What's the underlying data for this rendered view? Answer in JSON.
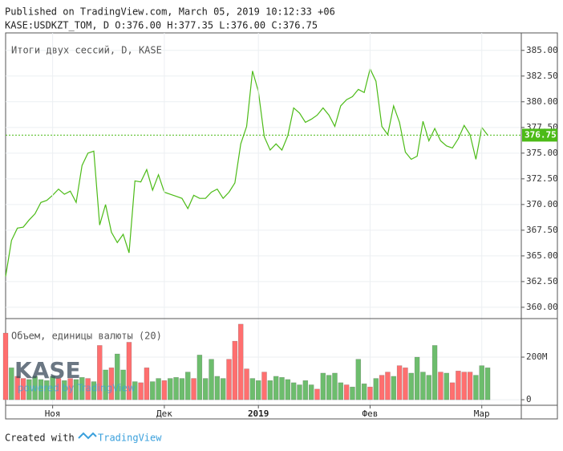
{
  "header": {
    "published": "Published on TradingView.com, March 05, 2019 10:12:33 +06",
    "symbol": "KASE:USDKZT_TOM, D O:376.00 H:377.35 L:376.00 C:376.75"
  },
  "watermark": {
    "logo": "KASE",
    "powered": "powered by TradingView"
  },
  "footer": {
    "created": "Created with",
    "brand": "TradingView"
  },
  "chart_data": [
    {
      "type": "line",
      "title": "Итоги двух сессий, D, KASE",
      "categories": [
        null,
        null,
        null,
        null,
        null,
        null,
        null,
        null,
        "Ноя",
        null,
        null,
        null,
        null,
        null,
        null,
        null,
        null,
        null,
        null,
        null,
        null,
        null,
        null,
        null,
        null,
        null,
        null,
        "Дек",
        null,
        null,
        null,
        null,
        null,
        null,
        null,
        null,
        null,
        null,
        null,
        null,
        null,
        null,
        null,
        "2019",
        null,
        null,
        null,
        null,
        null,
        null,
        null,
        null,
        null,
        null,
        null,
        null,
        null,
        null,
        null,
        null,
        null,
        null,
        "Фев",
        null,
        null,
        null,
        null,
        null,
        null,
        null,
        null,
        null,
        null,
        null,
        null,
        null,
        null,
        null,
        null,
        null,
        null,
        "Мар",
        null
      ],
      "series": [
        {
          "name": "USDKZT_TOM",
          "color": "#4cbb17",
          "values": [
            363.0,
            366.5,
            367.7,
            367.8,
            368.5,
            369.1,
            370.2,
            370.4,
            370.9,
            371.5,
            371.0,
            371.3,
            370.2,
            373.8,
            375.0,
            375.2,
            368.0,
            370.0,
            367.3,
            366.3,
            367.1,
            365.3,
            372.3,
            372.2,
            373.4,
            371.4,
            372.9,
            371.2,
            371.0,
            370.8,
            370.6,
            369.6,
            370.9,
            370.6,
            370.6,
            371.2,
            371.5,
            370.6,
            371.2,
            372.1,
            375.9,
            377.6,
            383.0,
            381.0,
            376.6,
            375.3,
            375.9,
            375.3,
            376.7,
            379.4,
            378.9,
            378.0,
            378.3,
            378.7,
            379.4,
            378.7,
            377.6,
            379.6,
            380.2,
            380.5,
            381.2,
            380.9,
            383.2,
            382.0,
            377.6,
            376.8,
            379.6,
            378.0,
            375.1,
            374.4,
            374.7,
            378.1,
            376.2,
            377.4,
            376.2,
            375.7,
            375.5,
            376.4,
            377.7,
            376.8,
            374.4,
            377.5,
            376.75
          ],
          "value_labels": {
            "82": "376.75"
          }
        }
      ],
      "ylim": [
        358.9,
        386.7
      ],
      "yticks": [
        {
          "value": 360,
          "label": "360.00"
        },
        {
          "value": 362.5,
          "label": "362.50"
        },
        {
          "value": 365,
          "label": "365.00"
        },
        {
          "value": 367.5,
          "label": "367.50"
        },
        {
          "value": 370,
          "label": "370.00"
        },
        {
          "value": 372.5,
          "label": "372.50"
        },
        {
          "value": 375,
          "label": "375.00"
        },
        {
          "value": 377.5,
          "label": "377.50"
        },
        {
          "value": 380,
          "label": "380.00"
        },
        {
          "value": 382.5,
          "label": "382.50"
        },
        {
          "value": 385,
          "label": "385.00"
        }
      ],
      "grid": true
    },
    {
      "type": "bar",
      "title": "Объем, единицы валюты (20)",
      "series": [
        {
          "name": "Объем",
          "values": [
            313,
            150,
            110,
            100,
            95,
            110,
            95,
            90,
            110,
            100,
            90,
            100,
            95,
            105,
            100,
            85,
            255,
            140,
            150,
            215,
            140,
            270,
            85,
            80,
            150,
            85,
            100,
            90,
            100,
            105,
            100,
            130,
            100,
            210,
            100,
            190,
            110,
            100,
            190,
            275,
            355,
            145,
            100,
            90,
            130,
            90,
            110,
            105,
            95,
            80,
            70,
            90,
            70,
            50,
            125,
            115,
            125,
            80,
            70,
            60,
            190,
            75,
            60,
            100,
            115,
            130,
            110,
            160,
            150,
            125,
            200,
            130,
            115,
            255,
            130,
            125,
            80,
            135,
            130,
            130,
            115,
            160,
            150
          ],
          "colors": [
            "#ff6f6f",
            "#6dbd6d",
            "#ff6f6f",
            "#ff6f6f",
            "#6dbd6d",
            "#6dbd6d",
            "#6dbd6d",
            "#6dbd6d",
            "#6dbd6d",
            "#ff6f6f",
            "#6dbd6d",
            "#ff6f6f",
            "#6dbd6d",
            "#6dbd6d",
            "#ff6f6f",
            "#6dbd6d",
            "#ff6f6f",
            "#6dbd6d",
            "#ff6f6f",
            "#6dbd6d",
            "#6dbd6d",
            "#ff6f6f",
            "#6dbd6d",
            "#ff6f6f",
            "#ff6f6f",
            "#6dbd6d",
            "#6dbd6d",
            "#ff6f6f",
            "#6dbd6d",
            "#6dbd6d",
            "#6dbd6d",
            "#6dbd6d",
            "#ff6f6f",
            "#6dbd6d",
            "#6dbd6d",
            "#6dbd6d",
            "#6dbd6d",
            "#6dbd6d",
            "#ff6f6f",
            "#ff6f6f",
            "#ff6f6f",
            "#ff6f6f",
            "#6dbd6d",
            "#6dbd6d",
            "#ff6f6f",
            "#6dbd6d",
            "#6dbd6d",
            "#6dbd6d",
            "#6dbd6d",
            "#6dbd6d",
            "#6dbd6d",
            "#6dbd6d",
            "#6dbd6d",
            "#ff6f6f",
            "#6dbd6d",
            "#6dbd6d",
            "#6dbd6d",
            "#6dbd6d",
            "#ff6f6f",
            "#6dbd6d",
            "#6dbd6d",
            "#6dbd6d",
            "#ff6f6f",
            "#6dbd6d",
            "#ff6f6f",
            "#ff6f6f",
            "#6dbd6d",
            "#ff6f6f",
            "#ff6f6f",
            "#6dbd6d",
            "#6dbd6d",
            "#6dbd6d",
            "#6dbd6d",
            "#6dbd6d",
            "#ff6f6f",
            "#6dbd6d",
            "#ff6f6f",
            "#ff6f6f",
            "#ff6f6f",
            "#ff6f6f",
            "#6dbd6d",
            "#6dbd6d",
            "#6dbd6d"
          ]
        }
      ],
      "ylim": [
        -26,
        381
      ],
      "yticks": [
        0,
        {
          "value": 200,
          "label": "200M"
        }
      ],
      "grid": true
    }
  ]
}
